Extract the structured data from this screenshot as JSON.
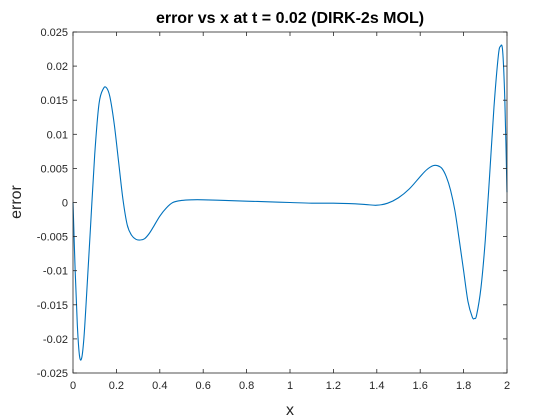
{
  "chart_data": {
    "type": "line",
    "title": "error vs x at t = 0.02 (DIRK-2s MOL)",
    "xlabel": "x",
    "ylabel": "error",
    "xlim": [
      0,
      2
    ],
    "ylim": [
      -0.025,
      0.025
    ],
    "grid": false,
    "x_ticks": [
      0,
      0.2,
      0.4,
      0.6,
      0.8,
      1,
      1.2,
      1.4,
      1.6,
      1.8,
      2
    ],
    "x_tick_labels": [
      "0",
      "0.2",
      "0.4",
      "0.6",
      "0.8",
      "1",
      "1.2",
      "1.4",
      "1.6",
      "1.8",
      "2"
    ],
    "y_ticks": [
      -0.025,
      -0.02,
      -0.015,
      -0.01,
      -0.005,
      0,
      0.005,
      0.01,
      0.015,
      0.02,
      0.025
    ],
    "y_tick_labels": [
      "-0.025",
      "-0.02",
      "-0.015",
      "-0.01",
      "-0.005",
      "0",
      "0.005",
      "0.01",
      "0.015",
      "0.02",
      "0.025"
    ],
    "series": [
      {
        "color": "#0072bd",
        "x": [
          0,
          0.01,
          0.02,
          0.03,
          0.04,
          0.05,
          0.06,
          0.08,
          0.1,
          0.12,
          0.14,
          0.155,
          0.17,
          0.19,
          0.21,
          0.23,
          0.25,
          0.27,
          0.29,
          0.31,
          0.33,
          0.35,
          0.37,
          0.4,
          0.43,
          0.46,
          0.5,
          0.55,
          0.6,
          0.7,
          0.8,
          0.9,
          1.0,
          1.1,
          1.2,
          1.3,
          1.35,
          1.4,
          1.45,
          1.5,
          1.55,
          1.6,
          1.63,
          1.66,
          1.68,
          1.7,
          1.72,
          1.74,
          1.76,
          1.78,
          1.8,
          1.82,
          1.84,
          1.85,
          1.86,
          1.88,
          1.9,
          1.92,
          1.94,
          1.96,
          1.97,
          1.98,
          1.99,
          2.0
        ],
        "y": [
          0,
          -0.01,
          -0.018,
          -0.0225,
          -0.0228,
          -0.02,
          -0.015,
          -0.004,
          0.007,
          0.0145,
          0.0167,
          0.0168,
          0.0155,
          0.0115,
          0.006,
          0.0005,
          -0.0033,
          -0.0048,
          -0.0054,
          -0.0055,
          -0.0053,
          -0.0046,
          -0.0036,
          -0.002,
          -0.0008,
          0,
          0.0003,
          0.0004,
          0.0004,
          0.0003,
          0.0002,
          0.0001,
          0,
          -0.0001,
          -0.0001,
          -0.0002,
          -0.0003,
          -0.0004,
          -0.0001,
          0.0007,
          0.002,
          0.0038,
          0.0048,
          0.0054,
          0.0054,
          0.005,
          0.0038,
          0.0018,
          -0.0012,
          -0.0055,
          -0.01,
          -0.0145,
          -0.0168,
          -0.017,
          -0.0165,
          -0.0125,
          -0.0055,
          0.004,
          0.014,
          0.0215,
          0.0229,
          0.0222,
          0.015,
          0.0015
        ]
      }
    ]
  }
}
